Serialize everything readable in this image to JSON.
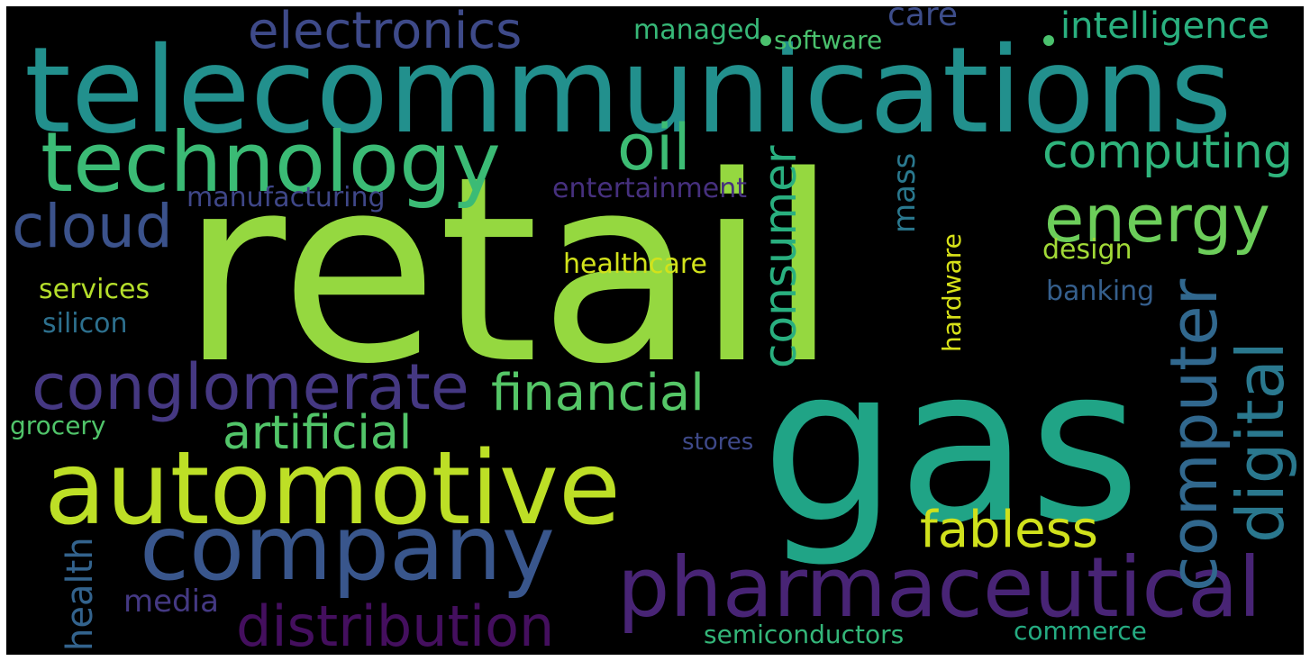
{
  "words": {
    "retail": {
      "text": "retail",
      "color": "#95d840"
    },
    "gas": {
      "text": "gas",
      "color": "#20a486"
    },
    "telecommunications": {
      "text": "telecommunications",
      "color": "#22908d"
    },
    "automotive": {
      "text": "automotive",
      "color": "#bddf26"
    },
    "technology": {
      "text": "technology",
      "color": "#3bbb75"
    },
    "company": {
      "text": "company",
      "color": "#39568c"
    },
    "pharmaceutical": {
      "text": "pharmaceutical",
      "color": "#482475"
    },
    "conglomerate": {
      "text": "conglomerate",
      "color": "#453882"
    },
    "financial": {
      "text": "financial",
      "color": "#55c667"
    },
    "distribution": {
      "text": "distribution",
      "color": "#440f5e"
    },
    "computer": {
      "text": "computer",
      "color": "#31688e"
    },
    "digital": {
      "text": "digital",
      "color": "#2a788e"
    },
    "energy": {
      "text": "energy",
      "color": "#6ccd5a"
    },
    "consumer": {
      "text": "consumer",
      "color": "#29af7f"
    },
    "electronics": {
      "text": "electronics",
      "color": "#3e4a89"
    },
    "oil": {
      "text": "oil",
      "color": "#3dbc74"
    },
    "computing": {
      "text": "computing",
      "color": "#2fb47c"
    },
    "cloud": {
      "text": "cloud",
      "color": "#3b528b"
    },
    "artificial": {
      "text": "artificial",
      "color": "#52c569"
    },
    "fabless": {
      "text": "fabless",
      "color": "#d0e11c"
    },
    "intelligence": {
      "text": "intelligence",
      "color": "#2ab07f"
    },
    "care": {
      "text": "care",
      "color": "#3d4d8a"
    },
    "managed": {
      "text": "managed",
      "color": "#37b878"
    },
    "software": {
      "text": "software",
      "color": "#4ac16d"
    },
    "manufacturing": {
      "text": "manufacturing",
      "color": "#3f4788"
    },
    "entertainment": {
      "text": "entertainment",
      "color": "#46307e"
    },
    "mass": {
      "text": "mass",
      "color": "#2a788e"
    },
    "healthcare": {
      "text": "healthcare",
      "color": "#d2e21b"
    },
    "hardware": {
      "text": "hardware",
      "color": "#d8e219"
    },
    "design": {
      "text": "design",
      "color": "#a2da37"
    },
    "services": {
      "text": "services",
      "color": "#b5de2b"
    },
    "silicon": {
      "text": "silicon",
      "color": "#2d708e"
    },
    "banking": {
      "text": "banking",
      "color": "#355f8d"
    },
    "grocery": {
      "text": "grocery",
      "color": "#50c46a"
    },
    "stores": {
      "text": "stores",
      "color": "#3e4989"
    },
    "health": {
      "text": "health",
      "color": "#33638d"
    },
    "media": {
      "text": "media",
      "color": "#443983"
    },
    "semiconductors": {
      "text": "semiconductors",
      "color": "#34b679"
    },
    "commerce": {
      "text": "commerce",
      "color": "#25ac82"
    }
  },
  "dots": [
    "#4ac16d",
    "#4ac16d"
  ]
}
